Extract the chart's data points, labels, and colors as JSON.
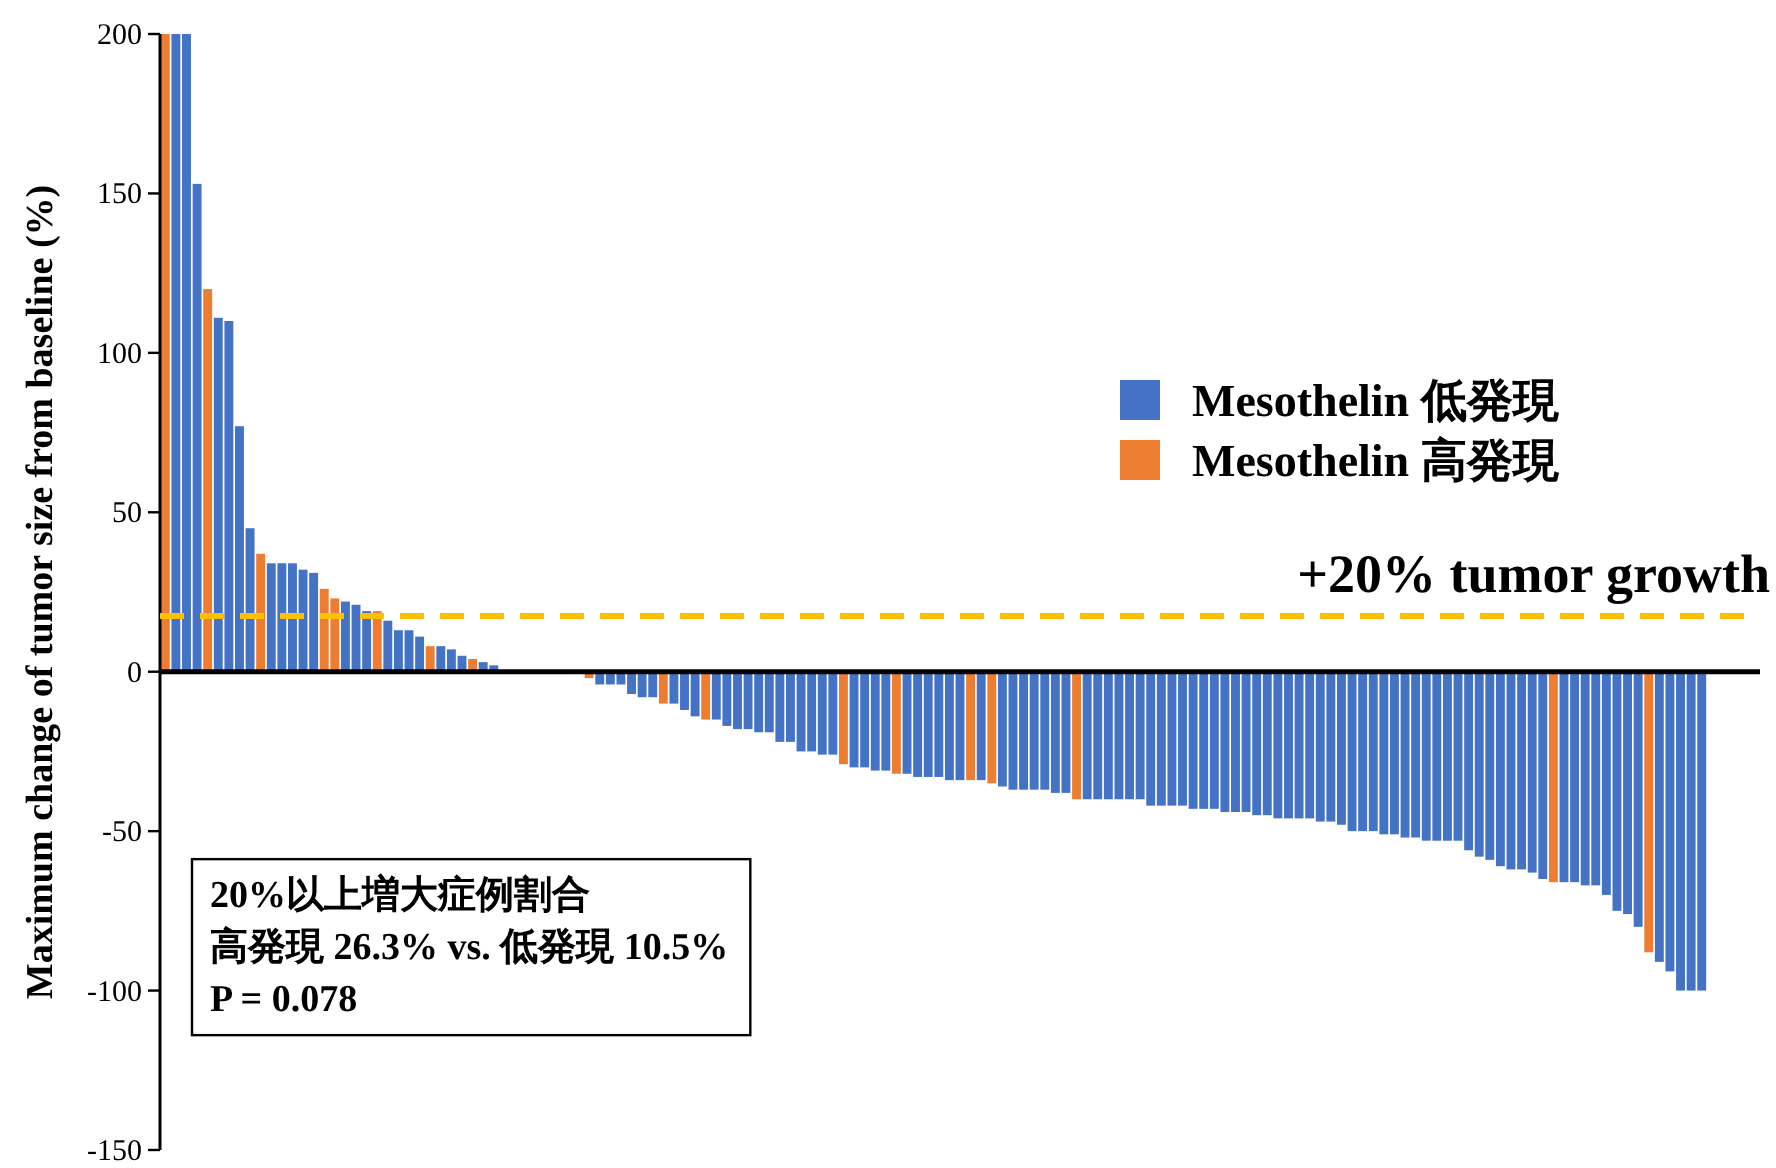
{
  "chart_data": {
    "type": "bar",
    "ylabel": "Maximum change of tumor size from baseline (%)",
    "ylim": [
      -150,
      200
    ],
    "yticks": [
      -150,
      -100,
      -50,
      0,
      50,
      100,
      150,
      200
    ],
    "tick_labels": "y",
    "legend": "right",
    "categories": [
      null,
      null,
      null,
      null,
      null,
      null,
      null,
      null,
      null,
      null,
      null,
      null,
      null,
      null,
      null,
      null,
      null,
      null,
      null,
      null,
      null,
      null,
      null,
      null,
      null,
      null,
      null,
      null,
      null,
      null,
      null,
      null,
      null,
      null,
      null,
      null,
      null,
      null,
      null,
      null,
      null,
      null,
      null,
      null,
      null,
      null,
      null,
      null,
      null,
      null,
      null,
      null,
      null,
      null,
      null,
      null,
      null,
      null,
      null,
      null,
      null,
      null,
      null,
      null,
      null,
      null,
      null,
      null,
      null,
      null,
      null,
      null,
      null,
      null,
      null,
      null,
      null,
      null,
      null,
      null,
      null,
      null,
      null,
      null,
      null,
      null,
      null,
      null,
      null,
      null,
      null,
      null,
      null,
      null,
      null,
      null,
      null,
      null,
      null,
      null,
      null,
      null,
      null,
      null,
      null,
      null,
      null,
      null,
      null,
      null,
      null,
      null,
      null,
      null,
      null,
      null,
      null,
      null,
      null,
      null,
      null,
      null,
      null,
      null,
      null,
      null,
      null,
      null,
      null,
      null,
      null,
      null,
      null,
      null,
      null,
      null,
      null,
      null,
      null,
      null,
      null,
      null,
      null,
      null,
      null,
      null,
      null,
      null,
      null,
      null,
      null
    ],
    "series": [
      {
        "name": "Mesothelin 低発現",
        "color": "#4472c4",
        "values": [
          null,
          200,
          200,
          153,
          null,
          111,
          110,
          77,
          45,
          null,
          34,
          34,
          34,
          32,
          31,
          null,
          null,
          22,
          21,
          19,
          null,
          16,
          13,
          13,
          11,
          null,
          8,
          7,
          5,
          null,
          3,
          2,
          null,
          null,
          null,
          null,
          null,
          null,
          null,
          null,
          null,
          -4,
          -4,
          -4,
          -7,
          -8,
          -8,
          null,
          -10,
          -12,
          -14,
          null,
          -15,
          -17,
          -18,
          -18,
          -19,
          -19,
          -22,
          -22,
          -25,
          -25,
          -26,
          -26,
          null,
          -30,
          -30,
          -31,
          -31,
          null,
          -32,
          -33,
          -33,
          -33,
          -34,
          -34,
          null,
          -34,
          null,
          -36,
          -37,
          -37,
          -37,
          -37,
          -38,
          -38,
          null,
          -40,
          -40,
          -40,
          -40,
          -40,
          -40,
          -42,
          -42,
          -42,
          -42,
          -43,
          -43,
          -43,
          -44,
          -44,
          -44,
          -45,
          -45,
          -46,
          -46,
          -46,
          -46,
          -47,
          -47,
          -48,
          -50,
          -50,
          -50,
          -51,
          -51,
          -52,
          -52,
          -53,
          -53,
          -53,
          -53,
          -56,
          -58,
          -59,
          -61,
          -62,
          -62,
          -63,
          -65,
          null,
          -66,
          -66,
          -67,
          -67,
          -70,
          -75,
          -76,
          -80,
          null,
          -91,
          -94,
          -100,
          -100,
          -100,
          null,
          null,
          null,
          null,
          null
        ]
      },
      {
        "name": "Mesothelin 高発現",
        "color": "#ed7d31",
        "values": [
          200,
          null,
          null,
          null,
          120,
          null,
          null,
          null,
          null,
          37,
          null,
          null,
          null,
          null,
          null,
          26,
          23,
          null,
          null,
          null,
          19,
          null,
          null,
          null,
          null,
          8,
          null,
          null,
          null,
          4,
          null,
          null,
          null,
          null,
          null,
          null,
          null,
          null,
          null,
          null,
          -2,
          null,
          null,
          null,
          null,
          null,
          null,
          -10,
          null,
          null,
          null,
          -15,
          null,
          null,
          null,
          null,
          null,
          null,
          null,
          null,
          null,
          null,
          null,
          null,
          -29,
          null,
          null,
          null,
          null,
          -32,
          null,
          null,
          null,
          null,
          null,
          null,
          -34,
          null,
          -35,
          null,
          null,
          null,
          null,
          null,
          null,
          null,
          -40,
          null,
          null,
          null,
          null,
          null,
          null,
          null,
          null,
          null,
          null,
          null,
          null,
          null,
          null,
          null,
          null,
          null,
          null,
          null,
          null,
          null,
          null,
          null,
          null,
          null,
          null,
          null,
          null,
          null,
          null,
          null,
          null,
          null,
          null,
          null,
          null,
          null,
          null,
          null,
          null,
          null,
          null,
          null,
          null,
          -66,
          null,
          null,
          null,
          null,
          null,
          null,
          null,
          null,
          -88,
          null,
          null,
          null,
          null,
          null,
          null,
          null,
          null,
          null,
          null
        ]
      }
    ],
    "ref_lines": [
      {
        "axis": "y",
        "value": 17.5,
        "label": "+20% tumor growth",
        "color": "#ffc000",
        "line_style": "dashed"
      }
    ],
    "annotations": [
      "20%以上増大症例割合",
      "高発現 26.3% vs. 低発現 10.5%",
      "P = 0.078"
    ]
  }
}
